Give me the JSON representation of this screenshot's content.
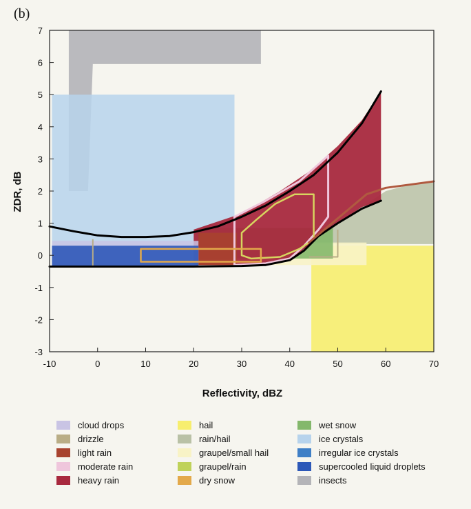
{
  "panel_label": "(b)",
  "chart_data": {
    "type": "area",
    "title": "",
    "xlabel": "Reflectivity, dBZ",
    "ylabel": "ZDR, dB",
    "xlim": [
      -10,
      70
    ],
    "ylim": [
      -3,
      7
    ],
    "xticks": [
      "-10",
      "0",
      "10",
      "20",
      "30",
      "40",
      "50",
      "60",
      "70"
    ],
    "yticks": [
      "7",
      "6",
      "5",
      "4",
      "3",
      "2",
      "1",
      "0",
      "-1",
      "-2",
      "-3"
    ],
    "grid": false,
    "legend_position": "bottom",
    "legend": [
      {
        "label": "cloud drops",
        "color": "#c9c4e4"
      },
      {
        "label": "drizzle",
        "color": "#b9ad86"
      },
      {
        "label": "light rain",
        "color": "#a8432f"
      },
      {
        "label": "moderate rain",
        "color": "#efc6dc"
      },
      {
        "label": "heavy rain",
        "color": "#a8293e"
      },
      {
        "label": "hail",
        "color": "#f7ee6e"
      },
      {
        "label": "rain/hail",
        "color": "#b9c1a6"
      },
      {
        "label": "graupel/small hail",
        "color": "#f8f3c6"
      },
      {
        "label": "graupel/rain",
        "color": "#bfd25a"
      },
      {
        "label": "dry snow",
        "color": "#e3a94a"
      },
      {
        "label": "wet snow",
        "color": "#84b86c"
      },
      {
        "label": "ice crystals",
        "color": "#b7d3ec"
      },
      {
        "label": "irregular ice crystals",
        "color": "#3f7fc6"
      },
      {
        "label": "supercooled liquid droplets",
        "color": "#2d58b8"
      },
      {
        "label": "insects",
        "color": "#b4b4b8"
      }
    ],
    "regions": [
      {
        "name": "insects",
        "color": "#b4b4b8",
        "opacity": 0.9,
        "points": [
          [
            -6,
            7
          ],
          [
            34,
            7
          ],
          [
            34,
            5.95
          ],
          [
            -1,
            5.95
          ],
          [
            -2,
            2
          ],
          [
            -6,
            2
          ]
        ]
      },
      {
        "name": "ice crystals",
        "color": "#b7d3ec",
        "opacity": 0.85,
        "points": [
          [
            -9.5,
            5
          ],
          [
            28.5,
            5
          ],
          [
            28.5,
            0.25
          ],
          [
            -9.5,
            0.25
          ]
        ]
      },
      {
        "name": "hail",
        "color": "#f7ee6e",
        "opacity": 0.9,
        "points": [
          [
            44.5,
            0.3
          ],
          [
            70,
            0.3
          ],
          [
            70,
            -3
          ],
          [
            44.5,
            -3
          ]
        ]
      },
      {
        "name": "rain/hail",
        "color": "#b9c1a6",
        "opacity": 0.85,
        "points": [
          [
            44,
            0.5
          ],
          [
            50,
            1.0
          ],
          [
            55,
            1.5
          ],
          [
            60,
            2.0
          ],
          [
            65,
            2.2
          ],
          [
            70,
            2.3
          ],
          [
            70,
            0.35
          ],
          [
            44,
            0.35
          ]
        ]
      },
      {
        "name": "graupel/small hail",
        "color": "#f8f3c6",
        "opacity": 0.9,
        "points": [
          [
            20,
            -0.3
          ],
          [
            56,
            -0.3
          ],
          [
            56,
            0.4
          ],
          [
            20,
            0.4
          ]
        ]
      },
      {
        "name": "wet snow",
        "color": "#84b86c",
        "opacity": 0.9,
        "points": [
          [
            21,
            0.85
          ],
          [
            49,
            0.85
          ],
          [
            49,
            -0.1
          ],
          [
            21,
            -0.1
          ]
        ]
      },
      {
        "name": "heavy rain",
        "color": "#a8293e",
        "opacity": 0.95,
        "points": [
          [
            20,
            0.8
          ],
          [
            30,
            1.3
          ],
          [
            38,
            2.0
          ],
          [
            44,
            2.6
          ],
          [
            50,
            3.4
          ],
          [
            55,
            4.2
          ],
          [
            59,
            5.1
          ],
          [
            59,
            1.7
          ],
          [
            55,
            1.5
          ],
          [
            50,
            1.0
          ],
          [
            46,
            0.6
          ],
          [
            43,
            0.2
          ],
          [
            40,
            -0.15
          ],
          [
            35,
            -0.3
          ],
          [
            20,
            -0.3
          ]
        ]
      },
      {
        "name": "light rain",
        "color": "#a8432f",
        "opacity": 0.9,
        "points": [
          [
            21,
            0.7
          ],
          [
            29,
            0.7
          ],
          [
            29,
            -0.3
          ],
          [
            21,
            -0.3
          ]
        ]
      },
      {
        "name": "cloud drops",
        "color": "#c9c4e4",
        "opacity": 0.85,
        "points": [
          [
            -9.5,
            0.45
          ],
          [
            21,
            0.45
          ],
          [
            21,
            -0.35
          ],
          [
            -9.5,
            -0.35
          ]
        ]
      },
      {
        "name": "supercooled liquid droplets",
        "color": "#2d58b8",
        "opacity": 0.9,
        "points": [
          [
            -9.5,
            0.3
          ],
          [
            21,
            0.3
          ],
          [
            21,
            -0.35
          ],
          [
            -9.5,
            -0.35
          ]
        ]
      }
    ],
    "outlines": [
      {
        "name": "moderate rain",
        "color": "#efc6dc",
        "width": 3,
        "points": [
          [
            28.5,
            1.2
          ],
          [
            35,
            1.7
          ],
          [
            42,
            2.3
          ],
          [
            48,
            3.1
          ],
          [
            48,
            1.2
          ],
          [
            46,
            0.8
          ],
          [
            43,
            0.3
          ],
          [
            40,
            -0.1
          ],
          [
            35,
            -0.25
          ],
          [
            28.5,
            -0.3
          ]
        ],
        "closed": true
      },
      {
        "name": "graupel/rain",
        "color": "#d7d55f",
        "width": 2.5,
        "points": [
          [
            30,
            0.7
          ],
          [
            33,
            1.1
          ],
          [
            37,
            1.6
          ],
          [
            41,
            1.9
          ],
          [
            45,
            1.9
          ],
          [
            45,
            0.5
          ],
          [
            42,
            0.2
          ],
          [
            38,
            -0.05
          ],
          [
            32,
            -0.1
          ],
          [
            30,
            0.0
          ]
        ],
        "closed": true
      },
      {
        "name": "dry snow",
        "color": "#e3a94a",
        "width": 2.5,
        "points": [
          [
            9,
            0.2
          ],
          [
            34,
            0.2
          ],
          [
            34,
            -0.2
          ],
          [
            9,
            -0.2
          ]
        ],
        "closed": true
      },
      {
        "name": "drizzle",
        "color": "#b9ad86",
        "width": 2,
        "points": [
          [
            -1,
            0.5
          ],
          [
            -1,
            -0.35
          ]
        ],
        "closed": false
      },
      {
        "name": "rain/hail",
        "color": "#b9ad86",
        "width": 2,
        "points": [
          [
            44,
            -0.05
          ],
          [
            50,
            -0.05
          ],
          [
            50,
            0.8
          ]
        ],
        "closed": false
      }
    ],
    "boundaries": [
      {
        "name": "upper",
        "color": "#000000",
        "width": 3,
        "points": [
          [
            -10,
            0.9
          ],
          [
            -5,
            0.75
          ],
          [
            0,
            0.62
          ],
          [
            5,
            0.57
          ],
          [
            10,
            0.57
          ],
          [
            15,
            0.6
          ],
          [
            20,
            0.72
          ],
          [
            25,
            0.9
          ],
          [
            30,
            1.2
          ],
          [
            35,
            1.55
          ],
          [
            40,
            2.0
          ],
          [
            45,
            2.5
          ],
          [
            50,
            3.2
          ],
          [
            55,
            4.1
          ],
          [
            59,
            5.1
          ]
        ]
      },
      {
        "name": "lower",
        "color": "#000000",
        "width": 3,
        "points": [
          [
            -10,
            -0.35
          ],
          [
            20,
            -0.35
          ],
          [
            30,
            -0.33
          ],
          [
            35,
            -0.3
          ],
          [
            40,
            -0.15
          ],
          [
            43,
            0.15
          ],
          [
            46,
            0.6
          ],
          [
            50,
            1.0
          ],
          [
            55,
            1.45
          ],
          [
            59,
            1.7
          ]
        ]
      },
      {
        "name": "rain/hail edge",
        "color": "#b05a40",
        "width": 3,
        "points": [
          [
            44,
            0.4
          ],
          [
            48,
            0.9
          ],
          [
            52,
            1.4
          ],
          [
            56,
            1.9
          ],
          [
            60,
            2.1
          ],
          [
            65,
            2.2
          ],
          [
            70,
            2.3
          ]
        ]
      }
    ]
  }
}
